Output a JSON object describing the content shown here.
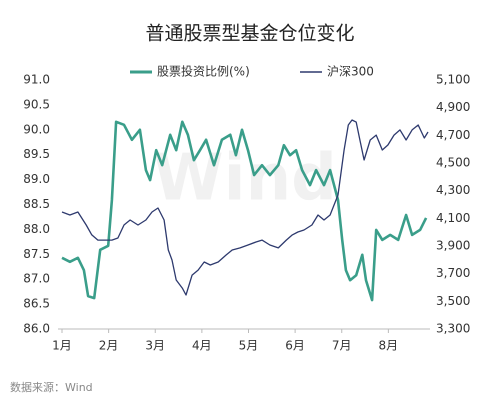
{
  "chart_data": {
    "type": "line",
    "title": "普通股票型基金仓位变化",
    "source": "数据来源：Wind",
    "watermark": "Wind",
    "xlim": [
      1,
      8.85
    ],
    "xticks": [
      {
        "value": 1,
        "label": "1月"
      },
      {
        "value": 2,
        "label": "2月"
      },
      {
        "value": 3,
        "label": "3月"
      },
      {
        "value": 4,
        "label": "4月"
      },
      {
        "value": 5,
        "label": "5月"
      },
      {
        "value": 6,
        "label": "6月"
      },
      {
        "value": 7,
        "label": "7月"
      },
      {
        "value": 8,
        "label": "8月"
      }
    ],
    "ylim": [
      86,
      91
    ],
    "yticks": [
      {
        "value": 86,
        "label": "86.0"
      },
      {
        "value": 86.5,
        "label": "86.5"
      },
      {
        "value": 87,
        "label": "87.0"
      },
      {
        "value": 87.5,
        "label": "87.5"
      },
      {
        "value": 88,
        "label": "88.0"
      },
      {
        "value": 88.5,
        "label": "88.5"
      },
      {
        "value": 89,
        "label": "89.0"
      },
      {
        "value": 89.5,
        "label": "89.5"
      },
      {
        "value": 90,
        "label": "90.0"
      },
      {
        "value": 90.5,
        "label": "90.5"
      },
      {
        "value": 91,
        "label": "91.0"
      }
    ],
    "y2lim": [
      3300,
      5100
    ],
    "y2ticks": [
      {
        "value": 3300,
        "label": "3,300"
      },
      {
        "value": 3500,
        "label": "3,500"
      },
      {
        "value": 3700,
        "label": "3,700"
      },
      {
        "value": 3900,
        "label": "3,900"
      },
      {
        "value": 4100,
        "label": "4,100"
      },
      {
        "value": 4300,
        "label": "4,300"
      },
      {
        "value": 4500,
        "label": "4,500"
      },
      {
        "value": 4700,
        "label": "4,700"
      },
      {
        "value": 4900,
        "label": "4,900"
      },
      {
        "value": 5100,
        "label": "5,100"
      }
    ],
    "series": [
      {
        "name": "股票投资比例(%)",
        "color": "#3a9e8a",
        "axis": "y",
        "x": [
          1.0,
          1.17,
          1.34,
          1.47,
          1.56,
          1.69,
          1.82,
          1.99,
          2.07,
          2.16,
          2.33,
          2.5,
          2.67,
          2.8,
          2.89,
          3.02,
          3.15,
          3.32,
          3.45,
          3.58,
          3.7,
          3.83,
          3.96,
          4.09,
          4.26,
          4.43,
          4.61,
          4.73,
          4.86,
          4.99,
          5.12,
          5.29,
          5.46,
          5.64,
          5.76,
          5.89,
          6.02,
          6.15,
          6.32,
          6.45,
          6.62,
          6.75,
          6.92,
          7.01,
          7.09,
          7.18,
          7.31,
          7.44,
          7.52,
          7.65,
          7.74,
          7.87,
          8.04,
          8.21,
          8.38,
          8.51,
          8.68,
          8.81
        ],
        "values": [
          87.43,
          87.35,
          87.43,
          87.18,
          86.66,
          86.62,
          87.59,
          87.67,
          88.59,
          90.16,
          90.1,
          89.8,
          90.0,
          89.19,
          88.99,
          89.59,
          89.29,
          89.9,
          89.59,
          90.16,
          89.9,
          89.39,
          89.59,
          89.8,
          89.29,
          89.8,
          89.9,
          89.49,
          90.0,
          89.59,
          89.09,
          89.29,
          89.09,
          89.29,
          89.69,
          89.49,
          89.59,
          89.19,
          88.89,
          89.19,
          88.89,
          89.19,
          88.59,
          87.79,
          87.18,
          86.98,
          87.08,
          87.49,
          86.98,
          86.58,
          87.99,
          87.79,
          87.89,
          87.79,
          88.29,
          87.89,
          87.99,
          88.23
        ]
      },
      {
        "name": "沪深300",
        "color": "#2e3a6e",
        "axis": "y2",
        "x": [
          1.0,
          1.17,
          1.34,
          1.52,
          1.64,
          1.77,
          1.9,
          2.07,
          2.2,
          2.33,
          2.46,
          2.63,
          2.8,
          2.93,
          3.06,
          3.19,
          3.28,
          3.36,
          3.45,
          3.58,
          3.66,
          3.79,
          3.92,
          4.05,
          4.18,
          4.35,
          4.52,
          4.65,
          4.82,
          4.99,
          5.16,
          5.29,
          5.46,
          5.64,
          5.81,
          5.94,
          6.06,
          6.19,
          6.36,
          6.49,
          6.62,
          6.75,
          6.92,
          7.05,
          7.14,
          7.22,
          7.31,
          7.39,
          7.48,
          7.61,
          7.74,
          7.87,
          7.99,
          8.12,
          8.25,
          8.38,
          8.51,
          8.64,
          8.77,
          8.85
        ],
        "values": [
          4146,
          4124,
          4146,
          4052,
          3980,
          3943,
          3943,
          3943,
          3958,
          4052,
          4088,
          4052,
          4088,
          4146,
          4175,
          4088,
          3871,
          3799,
          3654,
          3596,
          3546,
          3690,
          3726,
          3784,
          3763,
          3784,
          3835,
          3871,
          3886,
          3907,
          3929,
          3943,
          3907,
          3886,
          3943,
          3980,
          4001,
          4016,
          4052,
          4124,
          4088,
          4124,
          4269,
          4594,
          4775,
          4811,
          4796,
          4666,
          4522,
          4666,
          4702,
          4594,
          4630,
          4702,
          4739,
          4666,
          4739,
          4775,
          4681,
          4724
        ]
      }
    ]
  }
}
